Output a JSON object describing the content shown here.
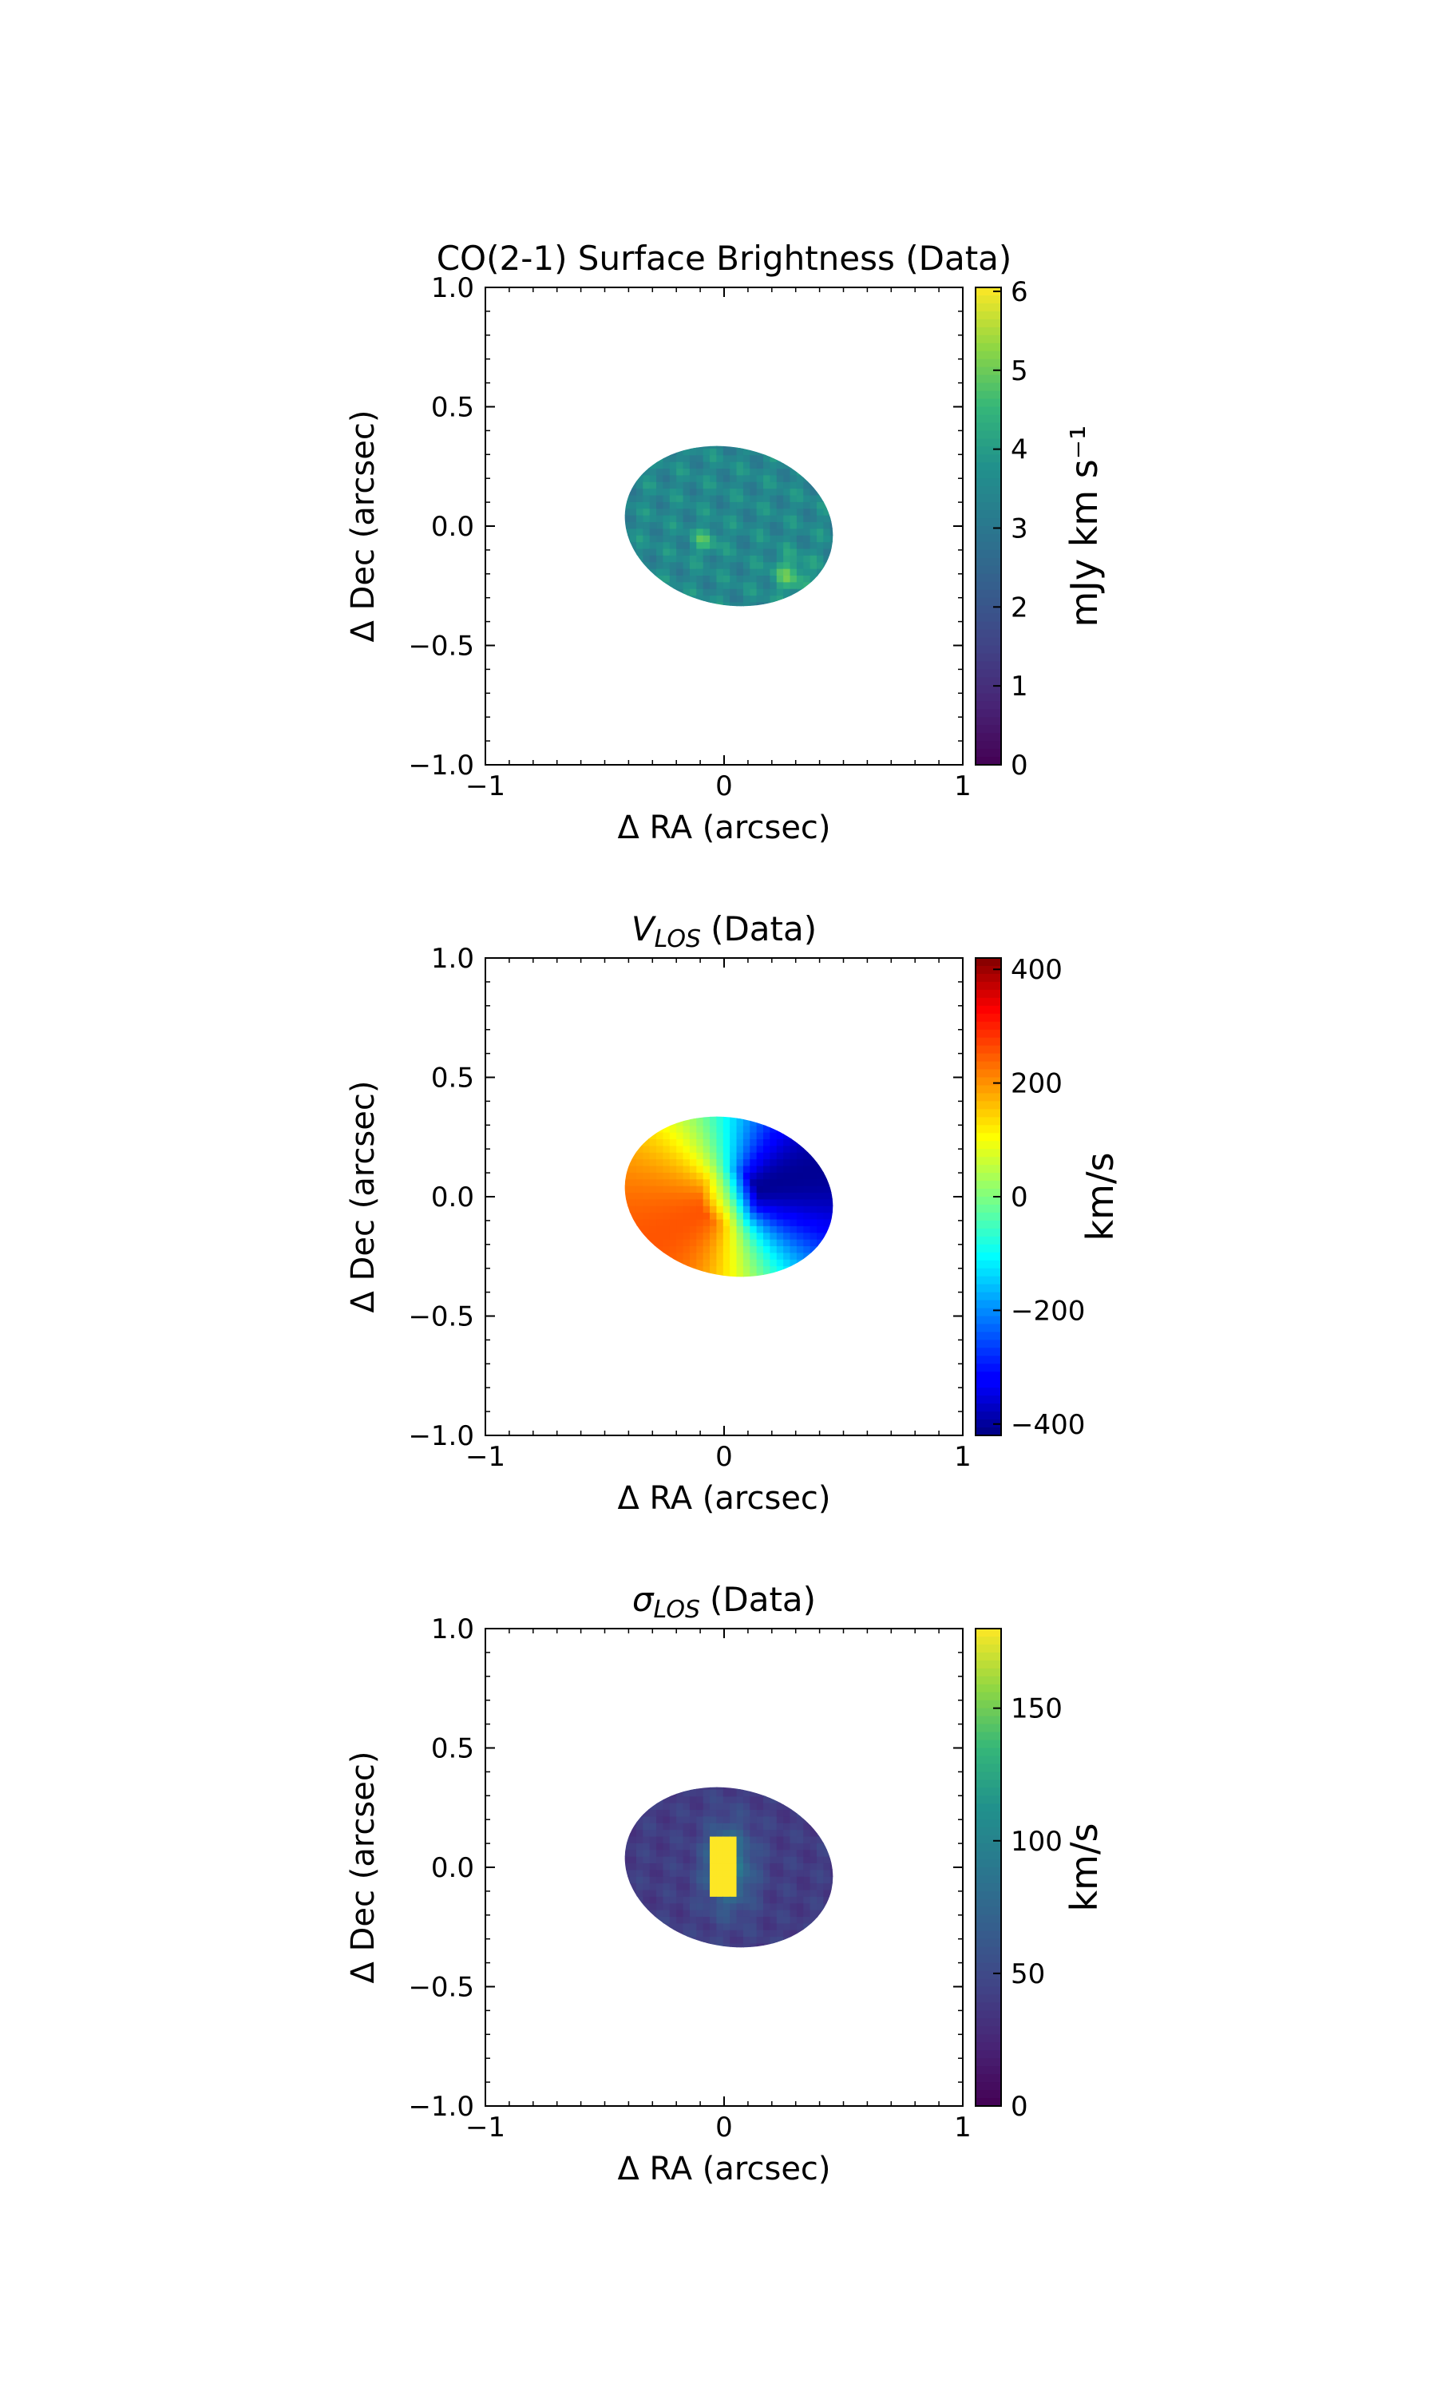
{
  "chart_data": [
    {
      "type": "heatmap",
      "title": "CO(2-1) Surface Brightness (Data)",
      "xlabel": "Δ RA (arcsec)",
      "ylabel": "Δ Dec (arcsec)",
      "xlim": [
        -1,
        1
      ],
      "ylim": [
        -1,
        1
      ],
      "xticks": [
        {
          "v": -1,
          "label": "−1"
        },
        {
          "v": 0,
          "label": "0"
        },
        {
          "v": 1,
          "label": "1"
        }
      ],
      "yticks": [
        {
          "v": 1,
          "label": "1.0"
        },
        {
          "v": 0.5,
          "label": "0.5"
        },
        {
          "v": 0,
          "label": "0.0"
        },
        {
          "v": -0.5,
          "label": "−0.5"
        },
        {
          "v": -1,
          "label": "−1.0"
        }
      ],
      "colormap": "viridis",
      "clim": [
        0,
        6.05
      ],
      "colorbar_label": "mJy km s⁻¹",
      "colorbar_ticks": [
        {
          "v": 0,
          "label": "0"
        },
        {
          "v": 1,
          "label": "1"
        },
        {
          "v": 2,
          "label": "2"
        },
        {
          "v": 3,
          "label": "3"
        },
        {
          "v": 4,
          "label": "4"
        },
        {
          "v": 5,
          "label": "5"
        },
        {
          "v": 6,
          "label": "6"
        }
      ],
      "field": {
        "kind": "surface_brightness",
        "ellipse_center": [
          0.02,
          0.0
        ],
        "semi_axis_ra": 0.44,
        "semi_axis_dec": 0.33,
        "typical_value": 3.5,
        "peak_value": 5.0
      }
    },
    {
      "type": "heatmap",
      "title_symbol": "V",
      "title_sub": "LOS",
      "title_rest": "(Data)",
      "xlabel": "Δ RA (arcsec)",
      "ylabel": "Δ Dec (arcsec)",
      "xlim": [
        -1,
        1
      ],
      "ylim": [
        -1,
        1
      ],
      "xticks": [
        {
          "v": -1,
          "label": "−1"
        },
        {
          "v": 0,
          "label": "0"
        },
        {
          "v": 1,
          "label": "1"
        }
      ],
      "yticks": [
        {
          "v": 1,
          "label": "1.0"
        },
        {
          "v": 0.5,
          "label": "0.5"
        },
        {
          "v": 0,
          "label": "0.0"
        },
        {
          "v": -0.5,
          "label": "−0.5"
        },
        {
          "v": -1,
          "label": "−1.0"
        }
      ],
      "colormap": "jet",
      "clim": [
        -420,
        420
      ],
      "colorbar_label": "km/s",
      "colorbar_ticks": [
        {
          "v": 400,
          "label": "400"
        },
        {
          "v": 200,
          "label": "200"
        },
        {
          "v": 0,
          "label": "0"
        },
        {
          "v": -200,
          "label": "−200"
        },
        {
          "v": -400,
          "label": "−400"
        }
      ],
      "field": {
        "kind": "velocity",
        "ellipse_center": [
          0.02,
          0.0
        ],
        "semi_axis_ra": 0.44,
        "semi_axis_dec": 0.33,
        "max_value": 410
      }
    },
    {
      "type": "heatmap",
      "title_symbol": "σ",
      "title_sub": "LOS",
      "title_rest": "(Data)",
      "xlabel": "Δ RA (arcsec)",
      "ylabel": "Δ Dec (arcsec)",
      "xlim": [
        -1,
        1
      ],
      "ylim": [
        -1,
        1
      ],
      "xticks": [
        {
          "v": -1,
          "label": "−1"
        },
        {
          "v": 0,
          "label": "0"
        },
        {
          "v": 1,
          "label": "1"
        }
      ],
      "yticks": [
        {
          "v": 1,
          "label": "1.0"
        },
        {
          "v": 0.5,
          "label": "0.5"
        },
        {
          "v": 0,
          "label": "0.0"
        },
        {
          "v": -0.5,
          "label": "−0.5"
        },
        {
          "v": -1,
          "label": "−1.0"
        }
      ],
      "colormap": "viridis",
      "clim": [
        0,
        180
      ],
      "colorbar_label": "km/s",
      "colorbar_ticks": [
        {
          "v": 0,
          "label": "0"
        },
        {
          "v": 50,
          "label": "50"
        },
        {
          "v": 100,
          "label": "100"
        },
        {
          "v": 150,
          "label": "150"
        }
      ],
      "field": {
        "kind": "dispersion",
        "ellipse_center": [
          0.02,
          0.0
        ],
        "semi_axis_ra": 0.44,
        "semi_axis_dec": 0.33,
        "background_value": 40,
        "peak_value": 180
      }
    }
  ]
}
